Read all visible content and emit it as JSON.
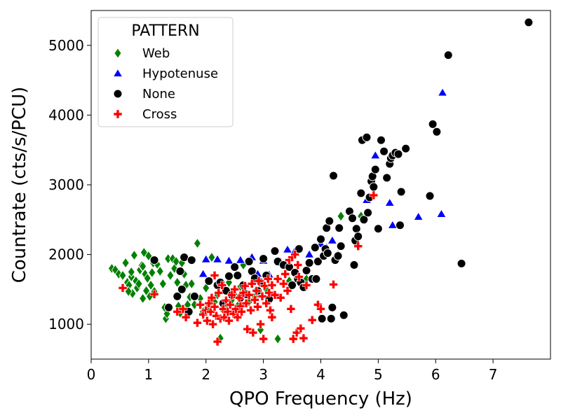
{
  "chart_data": {
    "type": "scatter",
    "title": "",
    "xlabel": "QPO Frequency (Hz)",
    "ylabel": "Countrate (cts/s/PCU)",
    "xlim": [
      0,
      8
    ],
    "ylim": [
      500,
      5500
    ],
    "xticks": [
      0,
      1,
      2,
      3,
      4,
      5,
      6,
      7
    ],
    "yticks": [
      1000,
      2000,
      3000,
      4000,
      5000
    ],
    "grid": false,
    "legend": {
      "title": "PATTERN",
      "placement": "top-left"
    },
    "series": [
      {
        "name": "Web",
        "marker": "diamond",
        "color": "#008000",
        "points": [
          [
            0.36,
            1800
          ],
          [
            0.42,
            1780
          ],
          [
            0.48,
            1720
          ],
          [
            0.55,
            1700
          ],
          [
            0.6,
            1880
          ],
          [
            0.63,
            1600
          ],
          [
            0.66,
            1560
          ],
          [
            0.7,
            1680
          ],
          [
            0.72,
            1440
          ],
          [
            0.75,
            1990
          ],
          [
            0.78,
            1620
          ],
          [
            0.8,
            1520
          ],
          [
            0.83,
            1580
          ],
          [
            0.85,
            1780
          ],
          [
            0.88,
            1840
          ],
          [
            0.9,
            1370
          ],
          [
            0.92,
            2030
          ],
          [
            0.94,
            1720
          ],
          [
            0.96,
            1480
          ],
          [
            0.98,
            1660
          ],
          [
            1.0,
            1980
          ],
          [
            1.02,
            1400
          ],
          [
            1.04,
            1560
          ],
          [
            1.06,
            1740
          ],
          [
            1.08,
            1880
          ],
          [
            1.12,
            1920
          ],
          [
            1.15,
            1860
          ],
          [
            1.2,
            1760
          ],
          [
            1.25,
            1580
          ],
          [
            1.28,
            1240
          ],
          [
            1.3,
            1080
          ],
          [
            1.32,
            1150
          ],
          [
            1.34,
            1940
          ],
          [
            1.38,
            1700
          ],
          [
            1.42,
            1940
          ],
          [
            1.45,
            1800
          ],
          [
            1.48,
            1900
          ],
          [
            1.52,
            1260
          ],
          [
            1.55,
            1160
          ],
          [
            1.58,
            1880
          ],
          [
            1.62,
            1720
          ],
          [
            1.65,
            1560
          ],
          [
            1.68,
            1280
          ],
          [
            1.72,
            1390
          ],
          [
            1.75,
            1580
          ],
          [
            1.8,
            1280
          ],
          [
            1.85,
            2160
          ],
          [
            1.9,
            1370
          ],
          [
            1.95,
            1180
          ],
          [
            2.0,
            1520
          ],
          [
            2.05,
            1260
          ],
          [
            2.1,
            1960
          ],
          [
            2.15,
            1320
          ],
          [
            2.2,
            1420
          ],
          [
            2.25,
            800
          ],
          [
            2.3,
            1200
          ],
          [
            2.35,
            1280
          ],
          [
            2.4,
            1600
          ],
          [
            2.45,
            1350
          ],
          [
            2.5,
            1420
          ],
          [
            2.55,
            1260
          ],
          [
            2.6,
            1540
          ],
          [
            2.65,
            1850
          ],
          [
            2.75,
            1320
          ],
          [
            2.85,
            1400
          ],
          [
            2.95,
            920
          ],
          [
            3.05,
            1500
          ],
          [
            3.25,
            790
          ],
          [
            3.45,
            1620
          ],
          [
            3.75,
            1650
          ],
          [
            4.35,
            2550
          ],
          [
            4.7,
            2550
          ],
          [
            0.9,
            1830
          ],
          [
            1.1,
            1470
          ],
          [
            0.65,
            1470
          ],
          [
            0.7,
            1750
          ],
          [
            1.5,
            1600
          ]
        ]
      },
      {
        "name": "Hypotenuse",
        "marker": "triangle",
        "color": "#0000ff",
        "points": [
          [
            1.95,
            1720
          ],
          [
            2.0,
            1930
          ],
          [
            2.2,
            1930
          ],
          [
            2.4,
            1910
          ],
          [
            2.6,
            1920
          ],
          [
            2.8,
            1960
          ],
          [
            2.9,
            1720
          ],
          [
            3.0,
            1910
          ],
          [
            3.1,
            1710
          ],
          [
            3.3,
            1900
          ],
          [
            3.42,
            2070
          ],
          [
            3.55,
            2050
          ],
          [
            3.8,
            2000
          ],
          [
            4.0,
            2150
          ],
          [
            4.1,
            2100
          ],
          [
            4.2,
            2200
          ],
          [
            4.3,
            2000
          ],
          [
            4.8,
            2780
          ],
          [
            4.95,
            3420
          ],
          [
            5.2,
            2740
          ],
          [
            5.25,
            2420
          ],
          [
            5.7,
            2540
          ],
          [
            6.1,
            2580
          ],
          [
            6.12,
            4320
          ]
        ]
      },
      {
        "name": "None",
        "marker": "circle",
        "color": "#000000",
        "points": [
          [
            1.1,
            1920
          ],
          [
            1.35,
            1240
          ],
          [
            1.5,
            1400
          ],
          [
            1.55,
            1760
          ],
          [
            1.58,
            1500
          ],
          [
            1.62,
            1960
          ],
          [
            1.7,
            1180
          ],
          [
            1.75,
            1920
          ],
          [
            1.8,
            1400
          ],
          [
            2.05,
            1620
          ],
          [
            2.2,
            1560
          ],
          [
            2.25,
            1600
          ],
          [
            2.3,
            1300
          ],
          [
            2.35,
            1480
          ],
          [
            2.4,
            1690
          ],
          [
            2.45,
            1420
          ],
          [
            2.5,
            1820
          ],
          [
            2.55,
            1700
          ],
          [
            2.6,
            1380
          ],
          [
            2.65,
            1560
          ],
          [
            2.7,
            1430
          ],
          [
            2.75,
            1900
          ],
          [
            2.8,
            1760
          ],
          [
            2.85,
            1660
          ],
          [
            2.9,
            1480
          ],
          [
            2.95,
            1600
          ],
          [
            3.0,
            1940
          ],
          [
            3.05,
            1700
          ],
          [
            3.1,
            1360
          ],
          [
            3.2,
            2050
          ],
          [
            3.25,
            1900
          ],
          [
            3.35,
            1850
          ],
          [
            3.45,
            1820
          ],
          [
            3.5,
            1560
          ],
          [
            3.55,
            1740
          ],
          [
            3.6,
            1650
          ],
          [
            3.62,
            2080
          ],
          [
            3.65,
            1600
          ],
          [
            3.7,
            1530
          ],
          [
            3.75,
            1770
          ],
          [
            3.8,
            1880
          ],
          [
            3.85,
            1650
          ],
          [
            3.9,
            2100
          ],
          [
            3.92,
            1650
          ],
          [
            3.95,
            1900
          ],
          [
            4.0,
            2220
          ],
          [
            4.02,
            1080
          ],
          [
            4.05,
            1980
          ],
          [
            4.08,
            2080
          ],
          [
            4.1,
            2380
          ],
          [
            4.12,
            2020
          ],
          [
            4.15,
            2480
          ],
          [
            4.18,
            1080
          ],
          [
            4.2,
            1240
          ],
          [
            4.22,
            3130
          ],
          [
            4.25,
            1920
          ],
          [
            4.3,
            1980
          ],
          [
            4.32,
            2380
          ],
          [
            4.35,
            2120
          ],
          [
            4.4,
            1130
          ],
          [
            4.5,
            2620
          ],
          [
            4.55,
            2520
          ],
          [
            4.58,
            1850
          ],
          [
            4.6,
            2200
          ],
          [
            4.62,
            2370
          ],
          [
            4.65,
            2260
          ],
          [
            4.7,
            2880
          ],
          [
            4.72,
            3640
          ],
          [
            4.75,
            2500
          ],
          [
            4.8,
            3680
          ],
          [
            4.82,
            2600
          ],
          [
            4.85,
            2820
          ],
          [
            4.88,
            3050
          ],
          [
            4.9,
            3120
          ],
          [
            4.92,
            2970
          ],
          [
            4.95,
            3220
          ],
          [
            5.0,
            2370
          ],
          [
            5.05,
            3640
          ],
          [
            5.1,
            3480
          ],
          [
            5.15,
            3100
          ],
          [
            5.2,
            3300
          ],
          [
            5.22,
            3380
          ],
          [
            5.25,
            3420
          ],
          [
            5.3,
            3460
          ],
          [
            5.35,
            3440
          ],
          [
            5.38,
            2420
          ],
          [
            5.4,
            2900
          ],
          [
            5.48,
            3520
          ],
          [
            5.9,
            2840
          ],
          [
            5.95,
            3870
          ],
          [
            6.02,
            3760
          ],
          [
            6.22,
            4860
          ],
          [
            6.45,
            1870
          ],
          [
            7.62,
            5330
          ]
        ]
      },
      {
        "name": "Cross",
        "marker": "plus",
        "color": "#ff0000",
        "points": [
          [
            0.55,
            1520
          ],
          [
            1.1,
            1430
          ],
          [
            1.5,
            1180
          ],
          [
            1.6,
            1220
          ],
          [
            1.65,
            1100
          ],
          [
            1.85,
            1020
          ],
          [
            1.9,
            1280
          ],
          [
            1.95,
            1140
          ],
          [
            2.0,
            1200
          ],
          [
            2.02,
            1050
          ],
          [
            2.05,
            1300
          ],
          [
            2.08,
            1180
          ],
          [
            2.1,
            1380
          ],
          [
            2.12,
            1000
          ],
          [
            2.15,
            1250
          ],
          [
            2.18,
            1120
          ],
          [
            2.2,
            750
          ],
          [
            2.22,
            1450
          ],
          [
            2.25,
            1080
          ],
          [
            2.28,
            1560
          ],
          [
            2.3,
            1220
          ],
          [
            2.32,
            1100
          ],
          [
            2.35,
            1340
          ],
          [
            2.38,
            1180
          ],
          [
            2.4,
            1050
          ],
          [
            2.42,
            1280
          ],
          [
            2.45,
            1420
          ],
          [
            2.48,
            1150
          ],
          [
            2.5,
            1500
          ],
          [
            2.52,
            1220
          ],
          [
            2.55,
            1100
          ],
          [
            2.58,
            1380
          ],
          [
            2.6,
            1260
          ],
          [
            2.62,
            1180
          ],
          [
            2.65,
            1450
          ],
          [
            2.68,
            1550
          ],
          [
            2.7,
            1300
          ],
          [
            2.72,
            930
          ],
          [
            2.75,
            1420
          ],
          [
            2.78,
            1200
          ],
          [
            2.8,
            1580
          ],
          [
            2.82,
            880
          ],
          [
            2.85,
            1350
          ],
          [
            2.88,
            1480
          ],
          [
            2.9,
            1250
          ],
          [
            2.92,
            1620
          ],
          [
            2.95,
            1000
          ],
          [
            2.98,
            1400
          ],
          [
            3.0,
            790
          ],
          [
            3.02,
            1550
          ],
          [
            3.05,
            1300
          ],
          [
            3.08,
            1650
          ],
          [
            3.1,
            1450
          ],
          [
            3.12,
            1200
          ],
          [
            3.15,
            1560
          ],
          [
            3.2,
            1420
          ],
          [
            3.25,
            1650
          ],
          [
            3.3,
            1380
          ],
          [
            3.35,
            1580
          ],
          [
            3.38,
            1720
          ],
          [
            3.42,
            1480
          ],
          [
            3.45,
            1920
          ],
          [
            3.48,
            1220
          ],
          [
            3.5,
            1960
          ],
          [
            3.52,
            790
          ],
          [
            3.55,
            2000
          ],
          [
            3.58,
            880
          ],
          [
            3.6,
            1850
          ],
          [
            3.62,
            1680
          ],
          [
            3.65,
            940
          ],
          [
            3.7,
            800
          ],
          [
            3.75,
            1560
          ],
          [
            3.85,
            1060
          ],
          [
            3.95,
            1280
          ],
          [
            4.0,
            1220
          ],
          [
            4.22,
            1570
          ],
          [
            4.65,
            2120
          ],
          [
            4.92,
            2850
          ],
          [
            3.15,
            1100
          ],
          [
            2.15,
            1700
          ]
        ]
      }
    ]
  }
}
